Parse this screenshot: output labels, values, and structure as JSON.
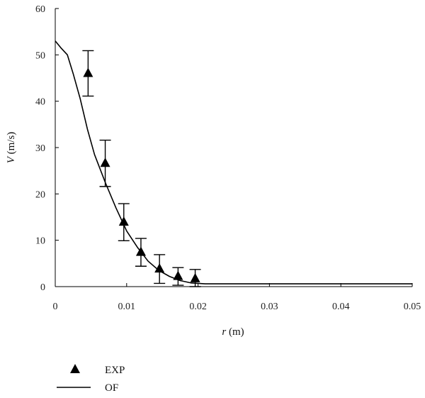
{
  "chart_data": {
    "type": "scatter",
    "title": "",
    "xlabel": {
      "var": "r",
      "unit": " (m)"
    },
    "ylabel": {
      "var": "V",
      "unit": " (m/s)"
    },
    "xlim": [
      0,
      0.05
    ],
    "ylim": [
      0,
      60
    ],
    "xticks": [
      {
        "value": 0,
        "label": "0"
      },
      {
        "value": 0.01,
        "label": "0.01"
      },
      {
        "value": 0.02,
        "label": "0.02"
      },
      {
        "value": 0.03,
        "label": "0.03"
      },
      {
        "value": 0.04,
        "label": "0.04"
      },
      {
        "value": 0.05,
        "label": "0.05"
      }
    ],
    "yticks": [
      {
        "value": 0,
        "label": "0"
      },
      {
        "value": 10,
        "label": "10"
      },
      {
        "value": 20,
        "label": "20"
      },
      {
        "value": 30,
        "label": "30"
      },
      {
        "value": 40,
        "label": "40"
      },
      {
        "value": 50,
        "label": "50"
      },
      {
        "value": 60,
        "label": "60"
      }
    ],
    "grid": false,
    "legend": {
      "placement": "below-left"
    },
    "series": [
      {
        "name": "EXP",
        "kind": "scatter",
        "marker": "triangle",
        "color": "#000000",
        "points": [
          {
            "x": 0.0046,
            "y": 46.0,
            "err": 4.9
          },
          {
            "x": 0.007,
            "y": 26.6,
            "err": 5.0
          },
          {
            "x": 0.0096,
            "y": 13.9,
            "err": 4.0
          },
          {
            "x": 0.012,
            "y": 7.4,
            "err": 3.0
          },
          {
            "x": 0.0146,
            "y": 3.8,
            "err": 3.1
          },
          {
            "x": 0.0172,
            "y": 2.2,
            "err": 1.9
          },
          {
            "x": 0.0196,
            "y": 1.7,
            "err": 2.0
          }
        ]
      },
      {
        "name": "OF",
        "kind": "line",
        "color": "#000000",
        "points": [
          {
            "x": 0.0,
            "y": 53.0
          },
          {
            "x": 0.0008,
            "y": 51.5
          },
          {
            "x": 0.0017,
            "y": 50.0
          },
          {
            "x": 0.0025,
            "y": 46.0
          },
          {
            "x": 0.0035,
            "y": 40.5
          },
          {
            "x": 0.0045,
            "y": 34.0
          },
          {
            "x": 0.0055,
            "y": 28.5
          },
          {
            "x": 0.007,
            "y": 22.5
          },
          {
            "x": 0.0085,
            "y": 17.0
          },
          {
            "x": 0.01,
            "y": 12.0
          },
          {
            "x": 0.0115,
            "y": 8.5
          },
          {
            "x": 0.013,
            "y": 5.5
          },
          {
            "x": 0.0145,
            "y": 3.5
          },
          {
            "x": 0.016,
            "y": 2.2
          },
          {
            "x": 0.0175,
            "y": 1.3
          },
          {
            "x": 0.019,
            "y": 0.8
          },
          {
            "x": 0.021,
            "y": 0.6
          },
          {
            "x": 0.03,
            "y": 0.6
          },
          {
            "x": 0.04,
            "y": 0.6
          },
          {
            "x": 0.05,
            "y": 0.6
          }
        ]
      }
    ]
  }
}
